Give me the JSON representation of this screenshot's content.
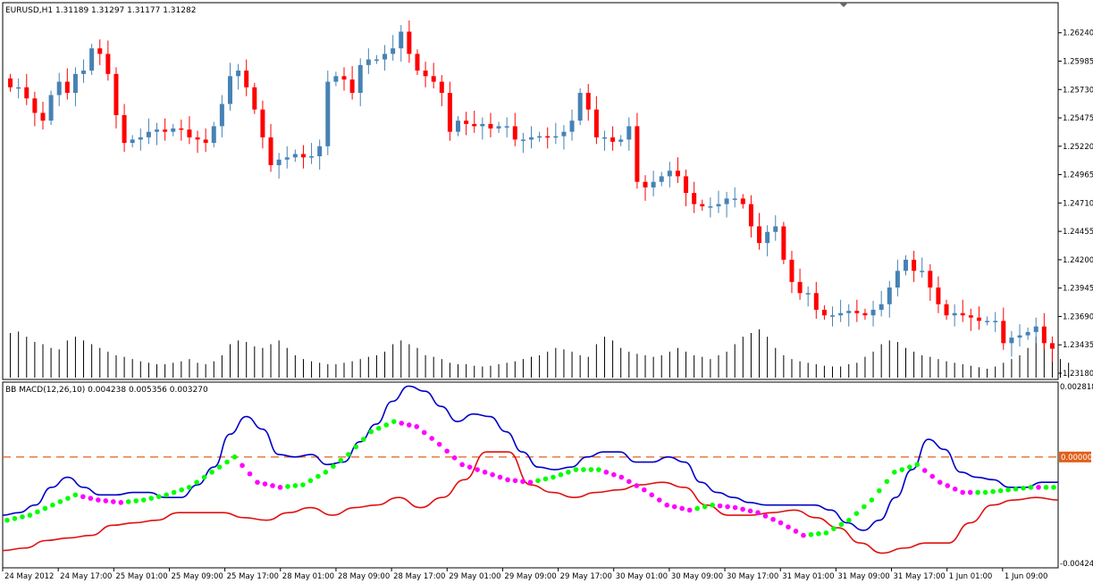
{
  "header": {
    "symbol_line": "EURUSD,H1  1.31189 1.31297 1.31177 1.31282",
    "macd_line": "BB MACD(12,26,10) 0.004238 0.005356 0.003270"
  },
  "colors": {
    "bull": "#4682b4",
    "bear": "#ff0000",
    "volume": "#000000",
    "macd_upper": "#0000c8",
    "macd_lower": "#e01010",
    "dot_up": "#00ff00",
    "dot_down": "#ff00ff",
    "zero_line": "#e0601a",
    "zero_badge": "#e0601a"
  },
  "chart_data": [
    {
      "type": "candlestick",
      "title": "EURUSD,H1",
      "ylim": [
        1.2318,
        1.2635
      ],
      "yticks": [
        "1.26240",
        "1.25985",
        "1.25730",
        "1.25475",
        "1.25220",
        "1.24965",
        "1.24710",
        "1.24455",
        "1.24200",
        "1.23945",
        "1.23690",
        "1.23435",
        "1.23180"
      ],
      "xticks": [
        "24 May 2012",
        "24 May 17:00",
        "25 May 01:00",
        "25 May 09:00",
        "25 May 17:00",
        "28 May 01:00",
        "28 May 09:00",
        "28 May 17:00",
        "29 May 01:00",
        "29 May 09:00",
        "29 May 17:00",
        "30 May 01:00",
        "30 May 09:00",
        "30 May 17:00",
        "31 May 01:00",
        "31 May 09:00",
        "31 May 17:00",
        "1 Jun 01:00",
        "1 Jun 09:00"
      ],
      "close_path": [
        1.2575,
        1.2575,
        1.2565,
        1.2552,
        1.2545,
        1.2568,
        1.258,
        1.257,
        1.2587,
        1.259,
        1.261,
        1.2605,
        1.2587,
        1.255,
        1.2525,
        1.2528,
        1.253,
        1.2535,
        1.2537,
        1.2535,
        1.2538,
        1.2537,
        1.253,
        1.2528,
        1.2525,
        1.254,
        1.256,
        1.2585,
        1.259,
        1.2575,
        1.2555,
        1.253,
        1.2505,
        1.251,
        1.2512,
        1.2515,
        1.2512,
        1.2513,
        1.2522,
        1.258,
        1.2585,
        1.2582,
        1.257,
        1.2595,
        1.26,
        1.26,
        1.2605,
        1.261,
        1.2625,
        1.2605,
        1.259,
        1.2585,
        1.258,
        1.257,
        1.2535,
        1.2545,
        1.2542,
        1.254,
        1.2542,
        1.2538,
        1.254,
        1.254,
        1.2528,
        1.2528,
        1.253,
        1.2531,
        1.253,
        1.2531,
        1.2535,
        1.2545,
        1.257,
        1.2555,
        1.253,
        1.253,
        1.2526,
        1.2528,
        1.254,
        1.249,
        1.2485,
        1.249,
        1.2495,
        1.25,
        1.2495,
        1.248,
        1.247,
        1.2468,
        1.2468,
        1.247,
        1.2475,
        1.2475,
        1.247,
        1.245,
        1.2435,
        1.2445,
        1.245,
        1.242,
        1.24,
        1.239,
        1.239,
        1.2375,
        1.237,
        1.237,
        1.2372,
        1.2374,
        1.2372,
        1.237,
        1.2375,
        1.238,
        1.2395,
        1.241,
        1.242,
        1.241,
        1.241,
        1.2395,
        1.238,
        1.237,
        1.2372,
        1.237,
        1.2368,
        1.2365,
        1.2365,
        1.2365,
        1.2345,
        1.235,
        1.2352,
        1.2355,
        1.236,
        1.2345,
        1.234
      ],
      "series": [
        {
          "name": "Volume",
          "values": [
            60,
            62,
            55,
            48,
            45,
            40,
            38,
            50,
            55,
            50,
            45,
            40,
            35,
            30,
            28,
            25,
            22,
            20,
            18,
            18,
            20,
            22,
            25,
            20,
            18,
            22,
            30,
            45,
            50,
            48,
            42,
            40,
            45,
            50,
            40,
            30,
            25,
            22,
            20,
            18,
            18,
            20,
            22,
            25,
            28,
            30,
            35,
            45,
            50,
            45,
            40,
            30,
            28,
            25,
            20,
            18,
            18,
            16,
            15,
            16,
            18,
            20,
            22,
            25,
            28,
            30,
            35,
            40,
            38,
            35,
            30,
            28,
            45,
            55,
            50,
            40,
            35,
            32,
            30,
            28,
            30,
            35,
            40,
            35,
            30,
            28,
            25,
            30,
            35,
            45,
            55,
            60,
            65,
            55,
            40,
            30,
            25,
            22,
            20,
            18,
            16,
            15,
            15,
            18,
            20,
            28,
            35,
            45,
            50,
            48,
            40,
            35,
            30,
            28,
            25,
            22,
            20,
            18,
            16,
            14,
            12,
            15,
            20,
            25,
            30,
            40,
            55,
            50,
            35,
            25,
            20
          ]
        }
      ]
    },
    {
      "type": "line",
      "title": "BB MACD(12,26,10)",
      "ylim": [
        -0.00424,
        0.002818
      ],
      "yticks": [
        "0.002818",
        "0.00000",
        "-0.00424"
      ],
      "series": [
        {
          "name": "Upper band",
          "values": [
            -0.0023,
            -0.0022,
            -0.0019,
            -0.0012,
            -0.0008,
            -0.0012,
            -0.0015,
            -0.0015,
            -0.0014,
            -0.0014,
            -0.0016,
            -0.0016,
            -0.0011,
            -0.0004,
            0.0009,
            0.0016,
            0.0011,
            0.0001,
            0.0,
            0.0001,
            -0.0003,
            -0.0002,
            0.0006,
            0.0013,
            0.0022,
            0.0028,
            0.0026,
            0.002,
            0.0014,
            0.0017,
            0.0016,
            0.001,
            0.0002,
            -0.0004,
            -0.0005,
            -0.0004,
            0.0,
            0.0002,
            0.0002,
            -0.0002,
            -0.0002,
            0.0,
            -0.0002,
            -0.001,
            -0.0014,
            -0.0016,
            -0.0018,
            -0.0019,
            -0.0019,
            -0.0019,
            -0.0019,
            -0.0021,
            -0.0026,
            -0.0029,
            -0.0025,
            -0.0016,
            -0.0005,
            0.0007,
            0.0003,
            -0.0006,
            -0.0008,
            -0.0009,
            -0.0012,
            -0.0012,
            -0.001,
            -0.001
          ]
        },
        {
          "name": "Lower band",
          "values": [
            -0.0037,
            -0.0036,
            -0.0033,
            -0.0032,
            -0.0031,
            -0.0027,
            -0.0026,
            -0.0025,
            -0.0022,
            -0.0022,
            -0.0022,
            -0.0024,
            -0.0025,
            -0.0022,
            -0.002,
            -0.0023,
            -0.002,
            -0.0019,
            -0.0016,
            -0.002,
            -0.0016,
            -0.0009,
            0.0002,
            0.0002,
            -0.0011,
            -0.0014,
            -0.0016,
            -0.0014,
            -0.0013,
            -0.0011,
            -0.001,
            -0.0012,
            -0.0019,
            -0.0023,
            -0.0023,
            -0.0022,
            -0.0021,
            -0.0024,
            -0.0028,
            -0.0034,
            -0.0038,
            -0.0036,
            -0.0034,
            -0.0034,
            -0.0026,
            -0.0019,
            -0.0017,
            -0.0016,
            -0.0017
          ]
        },
        {
          "name": "MACD",
          "values": [
            -0.0025,
            -0.0023,
            -0.0019,
            -0.0015,
            -0.0017,
            -0.0018,
            -0.0017,
            -0.0015,
            -0.0012,
            -0.0006,
            0.0,
            -0.001,
            -0.0012,
            -0.0011,
            -0.0006,
            0.0001,
            0.001,
            0.0014,
            0.0012,
            0.0005,
            -0.0003,
            -0.0006,
            -0.0009,
            -0.001,
            -0.0008,
            -0.0005,
            -0.0005,
            -0.0008,
            -0.0013,
            -0.0019,
            -0.0021,
            -0.0019,
            -0.002,
            -0.0022,
            -0.0026,
            -0.0031,
            -0.003,
            -0.0025,
            -0.0017,
            -0.0006,
            -0.0003,
            -0.001,
            -0.0014,
            -0.0014,
            -0.0013,
            -0.0012,
            -0.0012
          ]
        }
      ]
    }
  ]
}
